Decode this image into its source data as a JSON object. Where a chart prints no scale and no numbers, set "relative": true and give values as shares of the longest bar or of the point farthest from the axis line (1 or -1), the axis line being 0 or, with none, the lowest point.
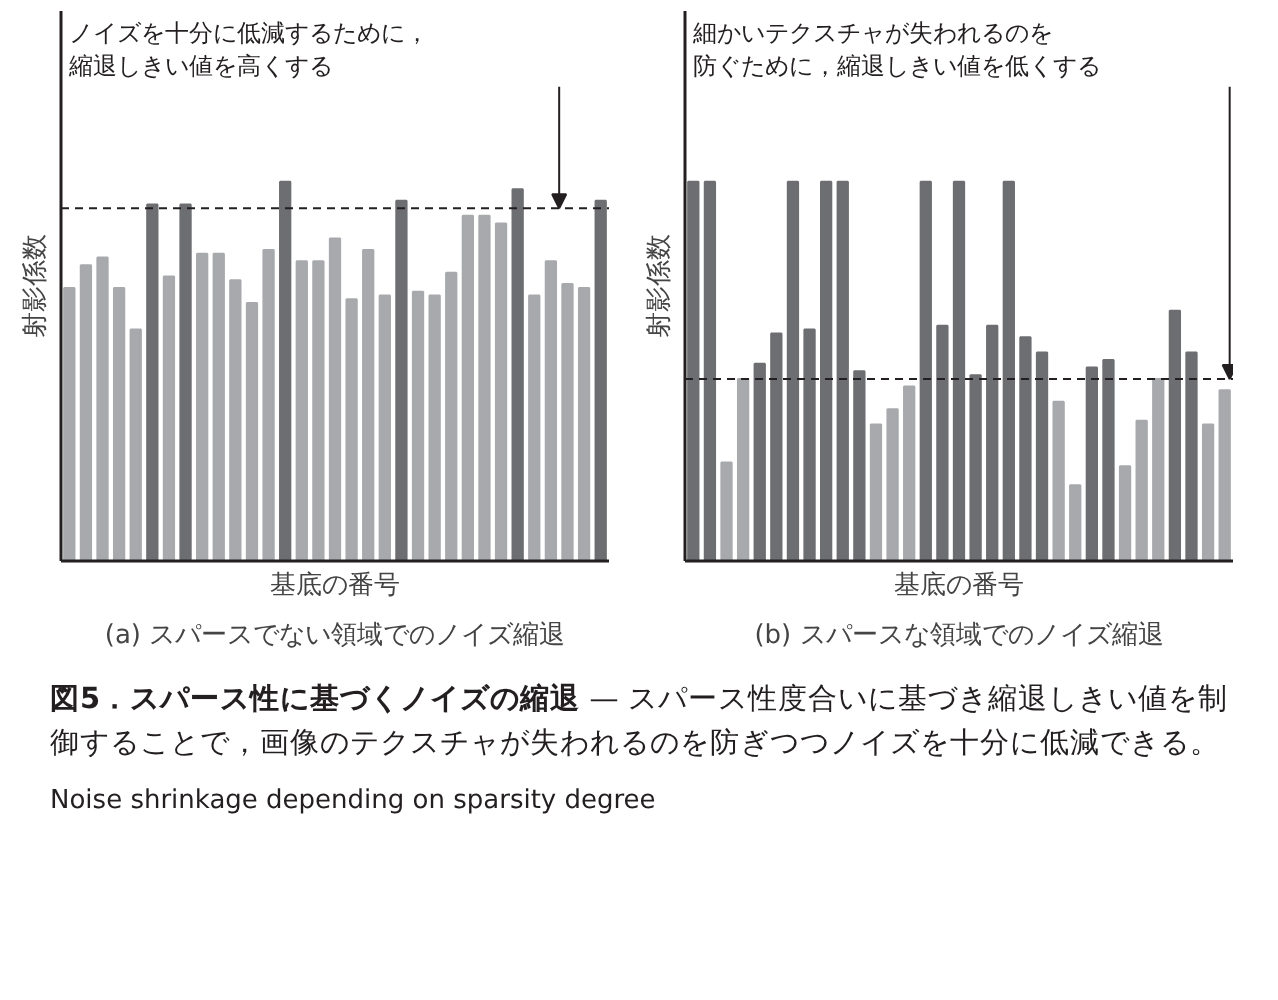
{
  "chart_data": [
    {
      "type": "bar",
      "title": "(a) スパースでない領域でのノイズ縮退",
      "xlabel": "基底の番号",
      "ylabel": "射影係数",
      "relative": true,
      "categories": [
        null,
        null,
        null,
        null,
        null,
        null,
        null,
        null,
        null,
        null,
        null,
        null,
        null,
        null,
        null,
        null,
        null,
        null,
        null,
        null,
        null,
        null,
        null,
        null,
        null,
        null,
        null,
        null,
        null,
        null,
        null,
        null,
        null
      ],
      "values": [
        0.72,
        0.78,
        0.8,
        0.72,
        0.61,
        0.94,
        0.75,
        0.94,
        0.81,
        0.81,
        0.74,
        0.68,
        0.82,
        1,
        0.79,
        0.79,
        0.85,
        0.69,
        0.82,
        0.7,
        0.95,
        0.71,
        0.7,
        0.76,
        0.91,
        0.91,
        0.89,
        0.98,
        0.7,
        0.79,
        0.73,
        0.72,
        0.95
      ],
      "colors": [
        "#a7a9ac",
        "#a7a9ac",
        "#a7a9ac",
        "#a7a9ac",
        "#a7a9ac",
        "#6d6e71",
        "#a7a9ac",
        "#6d6e71",
        "#a7a9ac",
        "#a7a9ac",
        "#a7a9ac",
        "#a7a9ac",
        "#a7a9ac",
        "#6d6e71",
        "#a7a9ac",
        "#a7a9ac",
        "#a7a9ac",
        "#a7a9ac",
        "#a7a9ac",
        "#a7a9ac",
        "#6d6e71",
        "#a7a9ac",
        "#a7a9ac",
        "#a7a9ac",
        "#a7a9ac",
        "#a7a9ac",
        "#a7a9ac",
        "#6d6e71",
        "#a7a9ac",
        "#a7a9ac",
        "#a7a9ac",
        "#a7a9ac",
        "#6d6e71"
      ],
      "ref_lines": [
        {
          "axis": "y",
          "value": 0.93,
          "label": "ノイズを十分に低減するために，縮退しきい値を高くする",
          "color": "#231f20",
          "line_style": "dashed"
        }
      ]
    },
    {
      "type": "bar",
      "title": "(b) スパースな領域でのノイズ縮退",
      "xlabel": "基底の番号",
      "ylabel": "射影係数",
      "relative": true,
      "categories": [
        null,
        null,
        null,
        null,
        null,
        null,
        null,
        null,
        null,
        null,
        null,
        null,
        null,
        null,
        null,
        null,
        null,
        null,
        null,
        null,
        null,
        null,
        null,
        null,
        null,
        null,
        null,
        null,
        null,
        null,
        null,
        null,
        null
      ],
      "values": [
        1,
        1,
        0.26,
        0.48,
        0.52,
        0.6,
        1,
        0.61,
        1,
        1,
        0.5,
        0.36,
        0.4,
        0.46,
        1,
        0.62,
        1,
        0.49,
        0.62,
        1,
        0.59,
        0.55,
        0.42,
        0.2,
        0.51,
        0.53,
        0.25,
        0.37,
        0.48,
        0.66,
        0.55,
        0.36,
        0.45
      ],
      "colors": [
        "#6d6e71",
        "#6d6e71",
        "#a7a9ac",
        "#a7a9ac",
        "#6d6e71",
        "#6d6e71",
        "#6d6e71",
        "#6d6e71",
        "#6d6e71",
        "#6d6e71",
        "#6d6e71",
        "#a7a9ac",
        "#a7a9ac",
        "#a7a9ac",
        "#6d6e71",
        "#6d6e71",
        "#6d6e71",
        "#6d6e71",
        "#6d6e71",
        "#6d6e71",
        "#6d6e71",
        "#6d6e71",
        "#a7a9ac",
        "#a7a9ac",
        "#6d6e71",
        "#6d6e71",
        "#a7a9ac",
        "#a7a9ac",
        "#a7a9ac",
        "#6d6e71",
        "#6d6e71",
        "#a7a9ac",
        "#a7a9ac"
      ],
      "ref_lines": [
        {
          "axis": "y",
          "value": 0.48,
          "label": "細かいテクスチャが失われるのを防ぐために，縮退しきい値を低くする",
          "color": "#231f20",
          "line_style": "dashed"
        }
      ],
      "annotations": [
        "図5．スパース性に基づくノイズの縮退",
        "— スパース性度合いに基づき縮退しきい値を制御することで，画像のテクスチャが失われるのを防ぎつつノイズを十分に低減できる。",
        "Noise shrinkage depending on sparsity degree"
      ]
    }
  ]
}
